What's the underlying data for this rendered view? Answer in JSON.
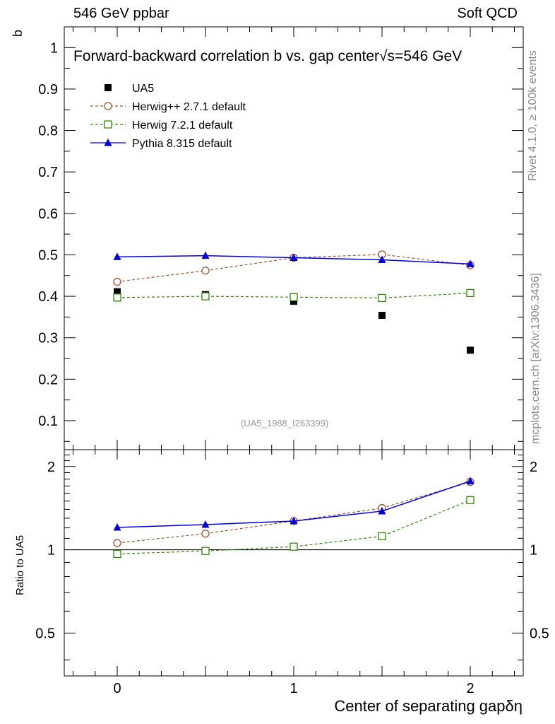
{
  "header": {
    "left": "546 GeV ppbar",
    "right": "Soft QCD"
  },
  "side_text": {
    "rivet": "Rivet 4.1.0, ≥ 100k events",
    "source": "mcplots.cern.ch [arXiv:1306.3436]"
  },
  "colors": {
    "ua5": "#000000",
    "herwigpp": "#a0522d",
    "herwig7": "#2e8b00",
    "pythia": "#0000e6"
  },
  "chart_data": [
    {
      "type": "scatter",
      "panel": "main",
      "title": "Forward-backward correlation b  vs. gap center",
      "energy_label": "√s=546 GeV",
      "reference_code": "(UA5_1988_I263399)",
      "xlabel": "",
      "ylabel": "b",
      "xlim": [
        -0.3,
        2.3
      ],
      "ylim": [
        0.03,
        1.05
      ],
      "y_ticks": [
        0.1,
        0.2,
        0.3,
        0.4,
        0.5,
        0.6,
        0.7,
        0.8,
        0.9,
        1
      ],
      "y_tick_labels": [
        "0.1",
        "0.2",
        "0.3",
        "0.4",
        "0.5",
        "0.6",
        "0.7",
        "0.8",
        "0.9",
        "1"
      ],
      "x": [
        0,
        0.5,
        1,
        1.5,
        2
      ],
      "legend_position": "top-left",
      "series": [
        {
          "name": "UA5",
          "style": "data-square",
          "values": [
            0.411,
            0.404,
            0.388,
            0.354,
            0.27
          ]
        },
        {
          "name": "Herwig++ 2.7.1 default",
          "style": "dashed-circle",
          "values": [
            0.435,
            0.462,
            0.493,
            0.501,
            0.475
          ]
        },
        {
          "name": "Herwig 7.2.1 default",
          "style": "dashed-square",
          "values": [
            0.397,
            0.4,
            0.398,
            0.396,
            0.408
          ]
        },
        {
          "name": "Pythia 8.315 default",
          "style": "solid-triangle",
          "values": [
            0.495,
            0.498,
            0.493,
            0.488,
            0.478
          ]
        }
      ]
    },
    {
      "type": "line",
      "panel": "ratio",
      "xlabel": "Center of separating gapδη",
      "ylabel": "Ratio to UA5",
      "xlim": [
        -0.3,
        2.3
      ],
      "ylim": [
        0.35,
        2.3
      ],
      "x_ticks": [
        0,
        1,
        2
      ],
      "x_tick_labels": [
        "0",
        "1",
        "2"
      ],
      "y_ticks": [
        0.5,
        1,
        2
      ],
      "y_tick_labels": [
        "0.5",
        "1",
        "2"
      ],
      "reference_line": 1,
      "x": [
        0,
        0.5,
        1,
        1.5,
        2
      ],
      "series": [
        {
          "name": "Herwig++ 2.7.1 default",
          "style": "dashed-circle",
          "values": [
            1.058,
            1.144,
            1.27,
            1.415,
            1.759
          ]
        },
        {
          "name": "Herwig 7.2.1 default",
          "style": "dashed-square",
          "values": [
            0.966,
            0.99,
            1.026,
            1.119,
            1.511
          ]
        },
        {
          "name": "Pythia 8.315 default",
          "style": "solid-triangle",
          "values": [
            1.204,
            1.233,
            1.27,
            1.379,
            1.77
          ]
        }
      ]
    }
  ]
}
